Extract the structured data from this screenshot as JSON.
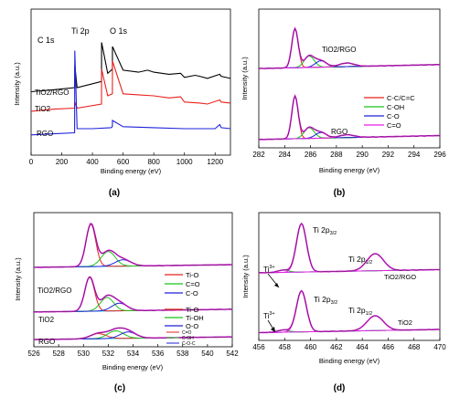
{
  "figure": {
    "panel_letters": [
      "(a)",
      "(b)",
      "(c)",
      "(d)"
    ]
  },
  "chart_data": [
    {
      "panel": "(a)",
      "type": "line",
      "xlabel": "Binding energy (eV)",
      "ylabel": "Intensity (a.u.)",
      "xlim": [
        0,
        1300
      ],
      "xticks": [
        0,
        200,
        400,
        600,
        800,
        1000,
        1200
      ],
      "grid": false,
      "annotations": [
        {
          "text": "C 1s",
          "x": 284
        },
        {
          "text": "Ti 2p",
          "x": 459
        },
        {
          "text": "O 1s",
          "x": 530
        }
      ],
      "series": [
        {
          "name": "TiO2/RGO",
          "color": "#000000",
          "offset": 2.0,
          "x": [
            0,
            150,
            284,
            285,
            300,
            459,
            460,
            500,
            530,
            531,
            600,
            700,
            760,
            800,
            900,
            975,
            1000,
            1070,
            1100,
            1150,
            1230,
            1240,
            1300
          ],
          "y": [
            0.2,
            0.3,
            0.4,
            1.5,
            0.4,
            0.7,
            2.6,
            1.1,
            1.3,
            2.4,
            1.25,
            1.15,
            1.25,
            1.15,
            1.05,
            1.1,
            0.9,
            1.0,
            0.95,
            0.85,
            1.05,
            0.95,
            0.85
          ]
        },
        {
          "name": "TiO2",
          "color": "#e8211d",
          "offset": 1.1,
          "x": [
            0,
            150,
            284,
            285,
            300,
            459,
            460,
            500,
            530,
            531,
            600,
            700,
            800,
            900,
            975,
            1000,
            1100,
            1150,
            1230,
            1240,
            1300
          ],
          "y": [
            0.15,
            0.25,
            0.3,
            0.6,
            0.3,
            0.5,
            2.2,
            0.9,
            1.0,
            2.6,
            1.0,
            0.95,
            0.9,
            0.8,
            0.85,
            0.6,
            0.55,
            0.5,
            0.7,
            0.6,
            0.55
          ]
        },
        {
          "name": "RGO",
          "color": "#1d21d8",
          "offset": 0,
          "x": [
            0,
            150,
            284,
            285,
            300,
            400,
            520,
            530,
            531,
            600,
            800,
            1000,
            1200,
            1230,
            1240,
            1300
          ],
          "y": [
            0.1,
            0.15,
            0.2,
            4.2,
            0.4,
            0.4,
            0.45,
            0.5,
            0.8,
            0.5,
            0.45,
            0.4,
            0.4,
            0.6,
            0.45,
            0.4
          ]
        }
      ]
    },
    {
      "panel": "(b)",
      "type": "line",
      "xlabel": "Binding energy (eV)",
      "ylabel": "Intensity (a.u.)",
      "xlim": [
        282,
        296
      ],
      "xticks": [
        282,
        284,
        286,
        288,
        290,
        292,
        294,
        296
      ],
      "grid": false,
      "legend": {
        "placement": "right",
        "entries": [
          {
            "label": "C-C/C=C",
            "color": "#e8211d"
          },
          {
            "label": "C-OH",
            "color": "#19c419"
          },
          {
            "label": "C-O",
            "color": "#1d21d8"
          },
          {
            "label": "C=O",
            "color": "#e81fe8"
          }
        ]
      },
      "spectra": [
        {
          "name": "TiO2/RGO",
          "offset": 1.0,
          "peaks": [
            {
              "component": "C-C/C=C",
              "center": 284.8,
              "height": 0.55,
              "width": 0.35
            },
            {
              "component": "C-OH",
              "center": 285.9,
              "height": 0.16,
              "width": 0.55
            },
            {
              "component": "C-O",
              "center": 286.8,
              "height": 0.09,
              "width": 0.6
            },
            {
              "component": "C=O",
              "center": 288.8,
              "height": 0.05,
              "width": 0.8
            }
          ]
        },
        {
          "name": "RGO",
          "offset": 0,
          "peaks": [
            {
              "component": "C-C/C=C",
              "center": 284.8,
              "height": 0.6,
              "width": 0.35
            },
            {
              "component": "C-OH",
              "center": 285.9,
              "height": 0.15,
              "width": 0.55
            },
            {
              "component": "C-O",
              "center": 286.8,
              "height": 0.08,
              "width": 0.6
            },
            {
              "component": "C=O",
              "center": 288.8,
              "height": 0.04,
              "width": 0.8
            }
          ]
        }
      ]
    },
    {
      "panel": "(c)",
      "type": "line",
      "xlabel": "Binding energy (eV)",
      "ylabel": "Intensity (a.u.)",
      "xlim": [
        526,
        542
      ],
      "xticks": [
        526,
        528,
        530,
        532,
        534,
        536,
        538,
        540,
        542
      ],
      "grid": false,
      "spectra": [
        {
          "name": "TiO2/RGO",
          "offset": 1.7,
          "legend": [
            {
              "label": "Ti-O",
              "color": "#e8211d"
            },
            {
              "label": "C=O",
              "color": "#19c419"
            },
            {
              "label": "C-O",
              "color": "#1d21d8"
            }
          ],
          "peaks": [
            {
              "label": "Ti-O",
              "center": 530.6,
              "height": 1.0,
              "width": 0.55
            },
            {
              "label": "C=O",
              "center": 532.0,
              "height": 0.35,
              "width": 0.8
            },
            {
              "label": "C-O",
              "center": 533.2,
              "height": 0.15,
              "width": 0.9
            }
          ]
        },
        {
          "name": "TiO2",
          "offset": 0.65,
          "legend": [
            {
              "label": "Ti-O",
              "color": "#e8211d"
            },
            {
              "label": "Ti-OH",
              "color": "#19c419"
            },
            {
              "label": "O-O",
              "color": "#1d21d8"
            }
          ],
          "peaks": [
            {
              "label": "Ti-O",
              "center": 530.5,
              "height": 0.8,
              "width": 0.55
            },
            {
              "label": "Ti-OH",
              "center": 531.9,
              "height": 0.32,
              "width": 0.75
            },
            {
              "label": "O-O",
              "center": 532.9,
              "height": 0.18,
              "width": 0.85
            }
          ]
        },
        {
          "name": "RGO",
          "offset": 0,
          "legend": [
            {
              "label": "C=O",
              "color": "#e8211d"
            },
            {
              "label": "C-OH",
              "color": "#19c419"
            },
            {
              "label": "C-O-C",
              "color": "#1d21d8"
            }
          ],
          "peaks": [
            {
              "label": "C=O",
              "center": 531.2,
              "height": 0.12,
              "width": 0.9
            },
            {
              "label": "C-OH",
              "center": 532.6,
              "height": 0.18,
              "width": 0.9
            },
            {
              "label": "C-O-C",
              "center": 533.6,
              "height": 0.15,
              "width": 0.9
            }
          ]
        }
      ]
    },
    {
      "panel": "(d)",
      "type": "line",
      "xlabel": "Binding energy (eV)",
      "ylabel": "Intensity (a.u.)",
      "xlim": [
        456,
        470
      ],
      "xticks": [
        456,
        458,
        460,
        462,
        464,
        466,
        468,
        470
      ],
      "grid": false,
      "spectra": [
        {
          "name": "TiO2/RGO",
          "offset": 1.05,
          "labels": [
            "Ti 2p3/2",
            "Ti 2p1/2",
            "Ti3+"
          ],
          "peaks": [
            {
              "label": "Ti3+",
              "center": 457.9,
              "height": 0.04,
              "width": 0.6
            },
            {
              "label": "Ti 2p3/2",
              "center": 459.3,
              "height": 0.85,
              "width": 0.55
            },
            {
              "label": "Ti 2p1/2",
              "center": 465.0,
              "height": 0.3,
              "width": 0.9
            }
          ]
        },
        {
          "name": "TiO2",
          "offset": 0,
          "labels": [
            "Ti 2p3/2",
            "Ti 2p1/2",
            "Ti3+"
          ],
          "peaks": [
            {
              "label": "Ti3+",
              "center": 457.9,
              "height": 0.04,
              "width": 0.6
            },
            {
              "label": "Ti 2p3/2",
              "center": 459.3,
              "height": 0.72,
              "width": 0.55
            },
            {
              "label": "Ti 2p1/2",
              "center": 465.0,
              "height": 0.26,
              "width": 0.9
            }
          ]
        }
      ]
    }
  ]
}
